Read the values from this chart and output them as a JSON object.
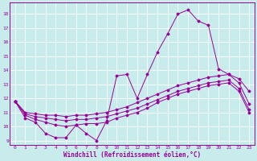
{
  "xlabel": "Windchill (Refroidissement éolien,°C)",
  "background_color": "#c8ecec",
  "line_color": "#990099",
  "xlim": [
    -0.5,
    23.5
  ],
  "ylim": [
    8.7,
    18.8
  ],
  "yticks": [
    9,
    10,
    11,
    12,
    13,
    14,
    15,
    16,
    17,
    18
  ],
  "xticks": [
    0,
    1,
    2,
    3,
    4,
    5,
    6,
    7,
    8,
    9,
    10,
    11,
    12,
    13,
    14,
    15,
    16,
    17,
    18,
    19,
    20,
    21,
    22,
    23
  ],
  "series": [
    [
      11.8,
      10.6,
      10.3,
      9.5,
      9.2,
      9.2,
      10.1,
      9.5,
      9.0,
      10.4,
      13.6,
      13.7,
      12.0,
      13.7,
      15.3,
      16.6,
      18.0,
      18.3,
      17.5,
      17.2,
      14.1,
      13.7,
      13.4,
      12.5
    ],
    [
      11.8,
      10.8,
      10.5,
      10.3,
      10.1,
      10.0,
      10.1,
      10.2,
      10.2,
      10.3,
      10.6,
      10.8,
      11.0,
      11.3,
      11.7,
      12.0,
      12.3,
      12.5,
      12.7,
      12.9,
      13.0,
      13.1,
      12.5,
      11.0
    ],
    [
      11.8,
      10.9,
      10.7,
      10.6,
      10.5,
      10.4,
      10.5,
      10.5,
      10.6,
      10.7,
      10.9,
      11.1,
      11.3,
      11.6,
      11.9,
      12.2,
      12.5,
      12.7,
      12.9,
      13.1,
      13.2,
      13.3,
      12.7,
      11.2
    ],
    [
      11.8,
      11.0,
      10.9,
      10.8,
      10.8,
      10.7,
      10.8,
      10.8,
      10.9,
      11.0,
      11.2,
      11.4,
      11.7,
      12.0,
      12.3,
      12.6,
      12.9,
      13.1,
      13.3,
      13.5,
      13.6,
      13.7,
      13.1,
      11.6
    ]
  ],
  "grid_color": "#ffffff",
  "tick_fontsize": 4.5,
  "xlabel_fontsize": 5.5
}
